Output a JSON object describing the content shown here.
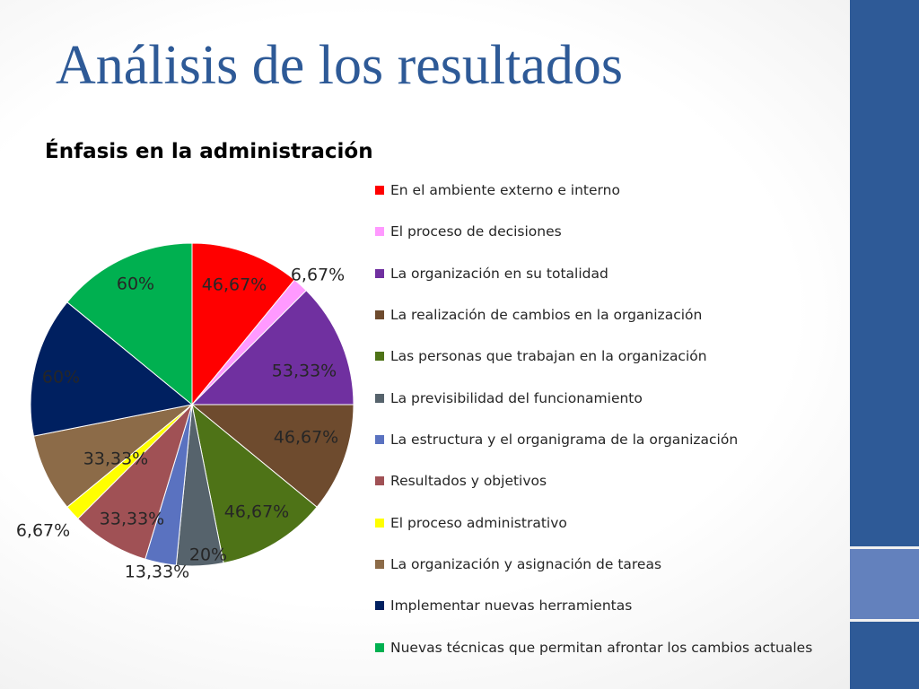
{
  "slide": {
    "title": "Análisis de los resultados"
  },
  "chart_data": {
    "type": "pie",
    "title": "Énfasis en la administración",
    "legend_position": "right",
    "categories": [
      "En el ambiente externo e interno",
      "El proceso de decisiones",
      "La organización en su totalidad",
      "La realización de cambios en la organización",
      "Las personas que trabajan en la organización",
      "La previsibilidad del funcionamiento",
      "La estructura y el organigrama de la organización",
      "Resultados y objetivos",
      "El proceso administrativo",
      "La organización y asignación de tareas",
      "Implementar nuevas herramientas",
      "Nuevas técnicas que permitan afrontar los cambios actuales"
    ],
    "values": [
      46.67,
      6.67,
      53.33,
      46.67,
      46.67,
      20,
      13.33,
      33.33,
      6.67,
      33.33,
      60,
      60
    ],
    "data_labels": [
      "46,67%",
      "6,67%",
      "53,33%",
      "46,67%",
      "46,67%",
      "20%",
      "13,33%",
      "33,33%",
      "6,67%",
      "33,33%",
      "60%",
      "60%"
    ],
    "colors": [
      "#ff0000",
      "#ff99ff",
      "#7030a0",
      "#6e4b2e",
      "#4e7317",
      "#56636c",
      "#5a72c0",
      "#a05155",
      "#ffff00",
      "#8c6b48",
      "#002060",
      "#00b050"
    ]
  }
}
